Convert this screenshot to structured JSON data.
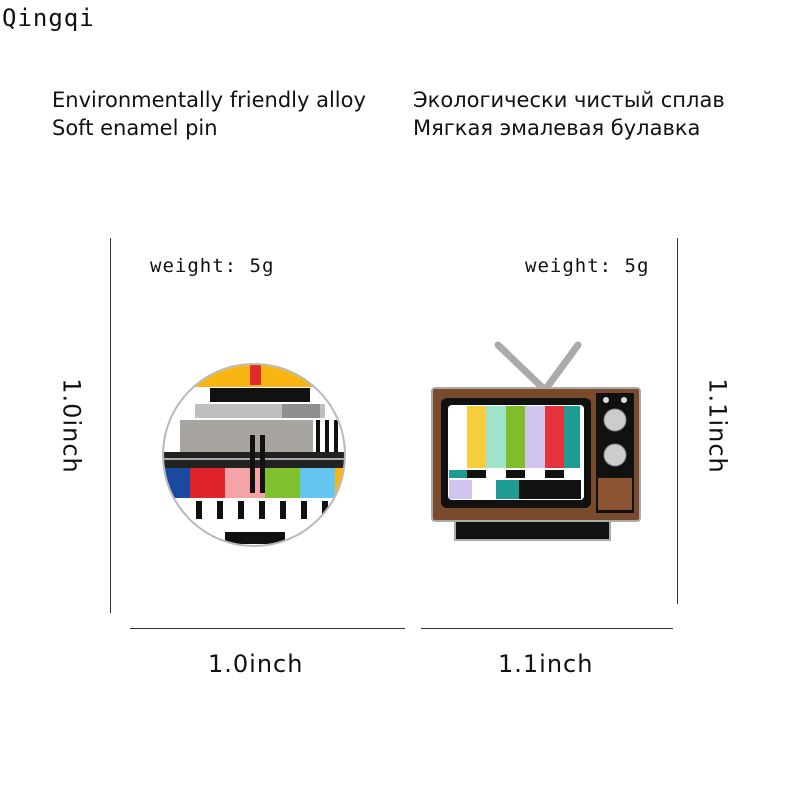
{
  "brand": "Qingqi",
  "description_en": [
    "Environmentally friendly alloy",
    "Soft enamel pin"
  ],
  "description_ru": [
    "Экологически чистый сплав",
    "Мягкая эмалевая булавка"
  ],
  "products": [
    {
      "weight": "weight: 5g",
      "width": "1.0inch",
      "height": "1.0inch",
      "shape": "round test-pattern pin"
    },
    {
      "weight": "weight: 5g",
      "width": "1.1inch",
      "height": "1.1inch",
      "shape": "retro TV pin"
    }
  ]
}
